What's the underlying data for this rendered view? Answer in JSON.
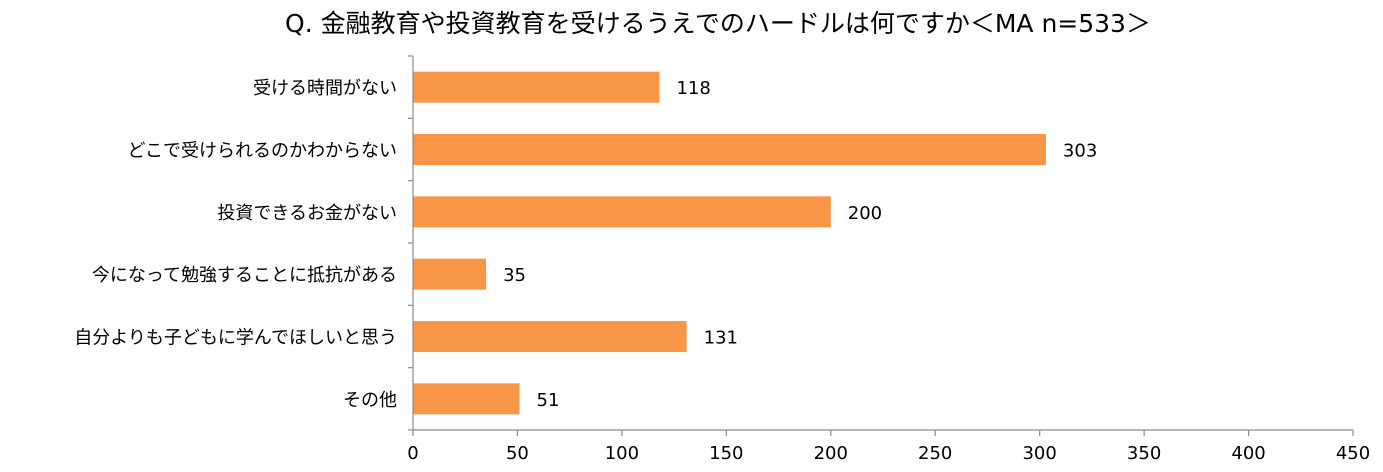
{
  "chart_data": {
    "type": "bar",
    "orientation": "horizontal",
    "title": "Q. 金融教育や投資教育を受けるうえでのハードルは何ですか＜MA n=533＞",
    "categories": [
      "受ける時間がない",
      "どこで受けられるのかわからない",
      "投資できるお金がない",
      "今になって勉強することに抵抗がある",
      "自分よりも子どもに学んでほしいと思う",
      "その他"
    ],
    "values": [
      118,
      303,
      200,
      35,
      131,
      51
    ],
    "value_labels": [
      "118",
      "303",
      "200",
      "35",
      "131",
      "51"
    ],
    "xlim": [
      0,
      450
    ],
    "x_ticks": [
      "0",
      "50",
      "100",
      "150",
      "200",
      "250",
      "300",
      "350",
      "400",
      "450"
    ],
    "grid": false,
    "legend": "none",
    "bar_color": "#F79646"
  }
}
